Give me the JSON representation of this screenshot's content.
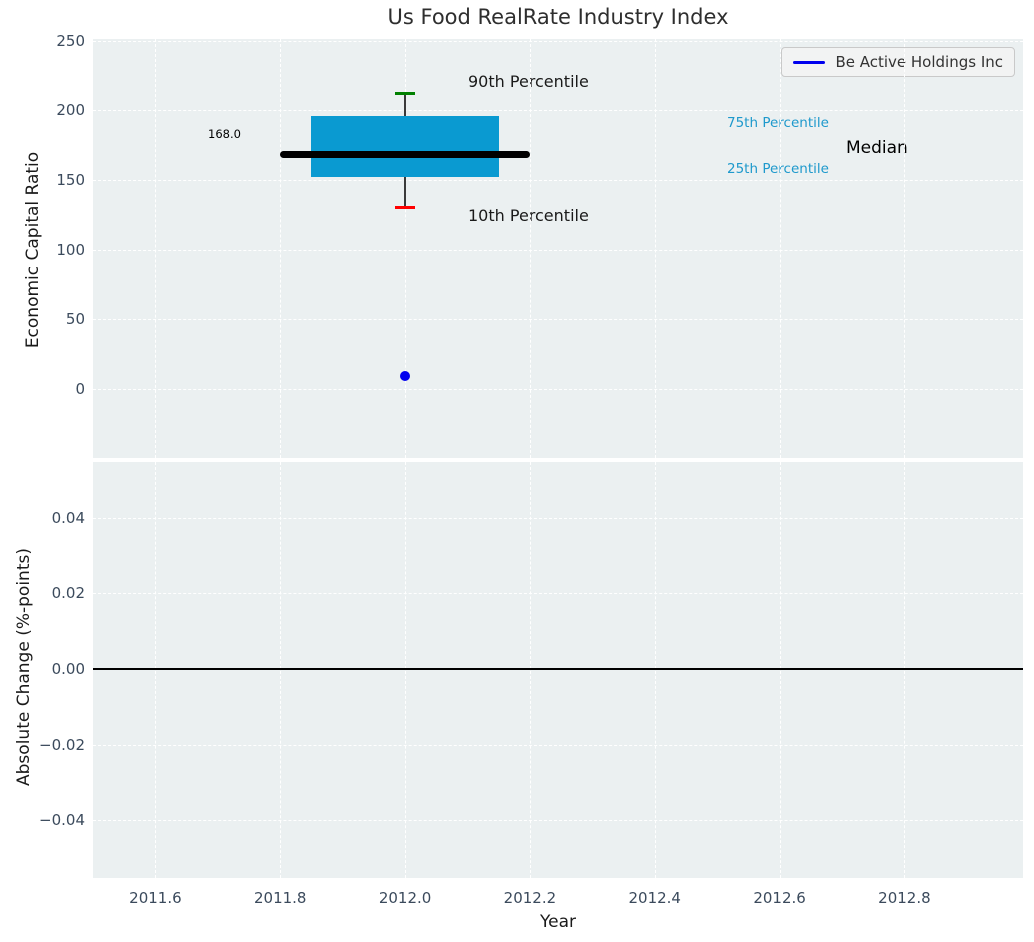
{
  "figure": {
    "title": "Us Food RealRate Industry Index"
  },
  "colors": {
    "plot_background": "#ebf0f1",
    "grid": "#ffffff",
    "tick_text": "#3b4a5c",
    "box_fill": "#0a9ad1",
    "cyan_label": "#1e99cc",
    "whisker_high_cap": "#008000",
    "whisker_low_cap": "#ff0000",
    "median_line": "#000000",
    "series_blue": "#0000ee"
  },
  "legend": {
    "label": "Be Active Holdings Inc",
    "line_color": "#0000ee",
    "position": "upper right"
  },
  "chart_data": [
    {
      "type": "box",
      "title": "Us Food RealRate Industry Index",
      "xlabel": "Year",
      "ylabel": "Economic Capital Ratio",
      "xlim": [
        2011.5,
        2012.99
      ],
      "ylim": [
        -49.6,
        251.2
      ],
      "grid": true,
      "xticks": [
        2011.6,
        2011.8,
        2012.0,
        2012.2,
        2012.4,
        2012.6,
        2012.8
      ],
      "xtick_labels": [
        "2011.6",
        "2011.8",
        "2012.0",
        "2012.2",
        "2012.4",
        "2012.6",
        "2012.8"
      ],
      "yticks": [
        0,
        50,
        100,
        150,
        200,
        250
      ],
      "ytick_labels": [
        "0",
        "50",
        "100",
        "150",
        "200",
        "250"
      ],
      "box": {
        "x_center": 2012.0,
        "box_x_range": [
          2011.85,
          2012.15
        ],
        "median_x_range": [
          2011.8,
          2012.2
        ],
        "p10": 130,
        "p25": 152,
        "median": 168,
        "p75": 196,
        "p90": 212,
        "median_label": "168.0",
        "cap_half_width_years": 0.016
      },
      "series": [
        {
          "name": "Be Active Holdings Inc",
          "x": [
            2012.0
          ],
          "y": [
            9
          ],
          "marker": "circle",
          "color": "#0000ee"
        }
      ],
      "annotations": [
        {
          "id": "p90",
          "text": "90th Percentile"
        },
        {
          "id": "p10",
          "text": "10th Percentile"
        },
        {
          "id": "p75",
          "text": "75th Percentile"
        },
        {
          "id": "p25",
          "text": "25th Percentile"
        },
        {
          "id": "median",
          "text": "Median"
        },
        {
          "id": "median_value",
          "text": "168.0"
        }
      ]
    },
    {
      "type": "line",
      "xlabel": "Year",
      "ylabel": "Absolute Change (%-points)",
      "xlim": [
        2011.5,
        2012.99
      ],
      "ylim": [
        -0.0553,
        0.0548
      ],
      "grid": true,
      "xticks": [
        2011.6,
        2011.8,
        2012.0,
        2012.2,
        2012.4,
        2012.6,
        2012.8
      ],
      "xtick_labels": [
        "2011.6",
        "2011.8",
        "2012.0",
        "2012.2",
        "2012.4",
        "2012.6",
        "2012.8"
      ],
      "yticks": [
        0.04,
        0.02,
        0.0,
        -0.02,
        -0.04
      ],
      "ytick_labels": [
        "0.04",
        "0.02",
        "0.00",
        "−0.02",
        "−0.04"
      ],
      "zero_line_y": 0.0
    }
  ]
}
